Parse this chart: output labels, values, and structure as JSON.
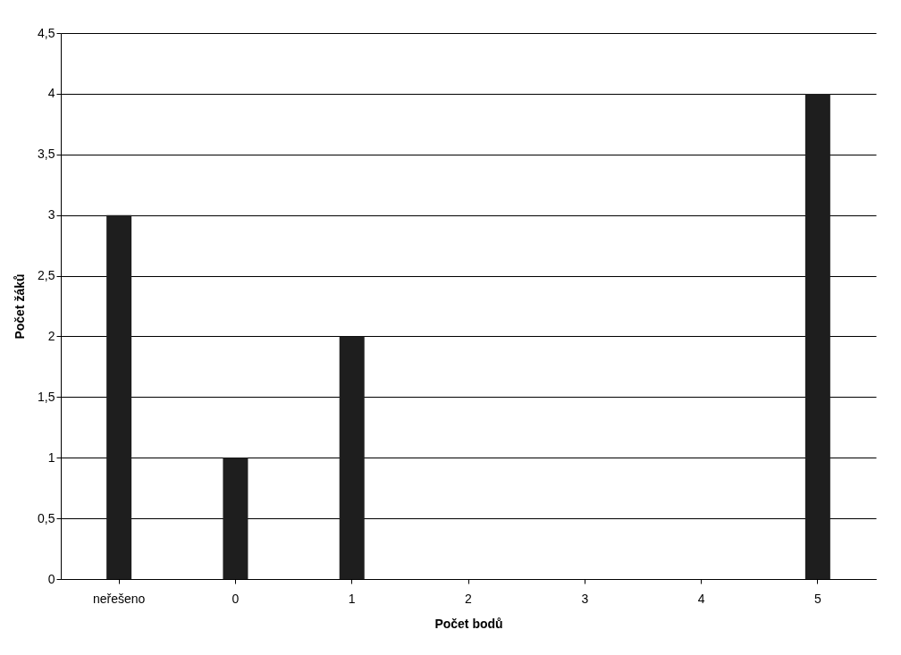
{
  "chart_data": {
    "type": "bar",
    "categories": [
      "neřešeno",
      "0",
      "1",
      "2",
      "3",
      "4",
      "5"
    ],
    "values": [
      3,
      1,
      2,
      0,
      0,
      0,
      4
    ],
    "color": "#1e1e1e",
    "xlabel": "Počet bodů",
    "ylabel": "Počet žáků",
    "ylim": [
      0,
      4.5
    ],
    "yticks": [
      0,
      {
        "value": 0.5,
        "label": "0,5"
      },
      1,
      {
        "value": 1.5,
        "label": "1,5"
      },
      2,
      {
        "value": 2.5,
        "label": "2,5"
      },
      3,
      {
        "value": 3.5,
        "label": "3,5"
      },
      4,
      {
        "value": 4.5,
        "label": "4,5"
      }
    ],
    "grid": "y"
  }
}
